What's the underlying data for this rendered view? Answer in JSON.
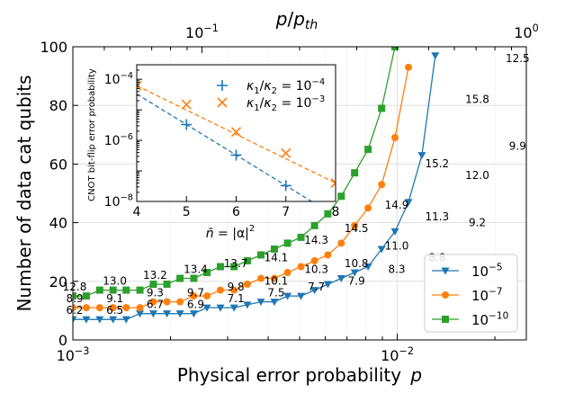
{
  "chart_data": [
    {
      "type": "line",
      "xlabel": "Physical error probability",
      "xlabel_var": "p",
      "ylabel": "Number of data cat qubits",
      "top_xlabel_num": "p",
      "top_xlabel_den": "p",
      "top_xlabel_den_sub": "th",
      "xscale": "log",
      "xlim": [
        0.001,
        0.025
      ],
      "ylim": [
        0,
        100
      ],
      "x_ticks": [
        {
          "value": 0.001,
          "base": "10",
          "exp": "−3"
        },
        {
          "value": 0.01,
          "base": "10",
          "exp": "−2"
        }
      ],
      "top_x_ticks": [
        {
          "value": 0.0025,
          "base": "10",
          "exp": "−1"
        },
        {
          "value": 0.025,
          "base": "10",
          "exp": "0"
        }
      ],
      "y_ticks": [
        0,
        20,
        40,
        60,
        80,
        100
      ],
      "grid": true,
      "legend_position": "bottom-right",
      "series": [
        {
          "name_base": "10",
          "name_exp": "−5",
          "color": "#1f77b4",
          "marker": "triangle-down",
          "points": [
            [
              0.001,
              7
            ],
            [
              0.0011,
              7
            ],
            [
              0.00121,
              7
            ],
            [
              0.00133,
              7
            ],
            [
              0.00146,
              7
            ],
            [
              0.00161,
              9
            ],
            [
              0.00177,
              9
            ],
            [
              0.00195,
              9
            ],
            [
              0.00214,
              9
            ],
            [
              0.00236,
              9
            ],
            [
              0.00259,
              11
            ],
            [
              0.00285,
              11
            ],
            [
              0.00314,
              11
            ],
            [
              0.00345,
              12
            ],
            [
              0.0038,
              13
            ],
            [
              0.00418,
              13
            ],
            [
              0.00459,
              15
            ],
            [
              0.00505,
              15
            ],
            [
              0.00556,
              17
            ],
            [
              0.00611,
              19
            ],
            [
              0.00672,
              21
            ],
            [
              0.00739,
              23
            ],
            [
              0.00813,
              25
            ],
            [
              0.00895,
              31
            ],
            [
              0.00984,
              37
            ],
            [
              0.01083,
              47
            ],
            [
              0.01191,
              63
            ],
            [
              0.0131,
              97
            ]
          ]
        },
        {
          "name_base": "10",
          "name_exp": "−7",
          "color": "#ff7f0e",
          "marker": "circle",
          "points": [
            [
              0.001,
              11
            ],
            [
              0.0011,
              11
            ],
            [
              0.00121,
              11
            ],
            [
              0.00133,
              11
            ],
            [
              0.00146,
              11
            ],
            [
              0.00161,
              11
            ],
            [
              0.00177,
              13
            ],
            [
              0.00195,
              13
            ],
            [
              0.00214,
              13
            ],
            [
              0.00236,
              15
            ],
            [
              0.00259,
              15
            ],
            [
              0.00285,
              17
            ],
            [
              0.00314,
              17
            ],
            [
              0.00345,
              19
            ],
            [
              0.0038,
              21
            ],
            [
              0.00418,
              21
            ],
            [
              0.00459,
              23
            ],
            [
              0.00505,
              25
            ],
            [
              0.00556,
              27
            ],
            [
              0.00611,
              29
            ],
            [
              0.00672,
              33
            ],
            [
              0.00739,
              39
            ],
            [
              0.00813,
              45
            ],
            [
              0.00895,
              53
            ],
            [
              0.00984,
              69
            ],
            [
              0.01083,
              93
            ]
          ]
        },
        {
          "name_base": "10",
          "name_exp": "−10",
          "color": "#2ca02c",
          "marker": "square",
          "points": [
            [
              0.001,
              15
            ],
            [
              0.0011,
              15
            ],
            [
              0.00121,
              17
            ],
            [
              0.00133,
              17
            ],
            [
              0.00146,
              17
            ],
            [
              0.00161,
              17
            ],
            [
              0.00177,
              19
            ],
            [
              0.00195,
              19
            ],
            [
              0.00214,
              21
            ],
            [
              0.00236,
              21
            ],
            [
              0.00259,
              23
            ],
            [
              0.00285,
              25
            ],
            [
              0.00314,
              25
            ],
            [
              0.00345,
              27
            ],
            [
              0.0038,
              29
            ],
            [
              0.00418,
              31
            ],
            [
              0.00459,
              33
            ],
            [
              0.00505,
              35
            ],
            [
              0.00556,
              39
            ],
            [
              0.00611,
              43
            ],
            [
              0.00672,
              49
            ],
            [
              0.00739,
              57
            ],
            [
              0.00813,
              65
            ],
            [
              0.00895,
              79
            ],
            [
              0.00984,
              100
            ]
          ]
        }
      ],
      "annotations": [
        {
          "series": 0,
          "text": "6.2",
          "x": 0.001,
          "y": 7
        },
        {
          "series": 0,
          "text": "6.5",
          "x": 0.00133,
          "y": 7
        },
        {
          "series": 0,
          "text": "6.7",
          "x": 0.00177,
          "y": 9
        },
        {
          "series": 0,
          "text": "6.9",
          "x": 0.00236,
          "y": 9
        },
        {
          "series": 0,
          "text": "7.1",
          "x": 0.00314,
          "y": 11
        },
        {
          "series": 0,
          "text": "7.5",
          "x": 0.00418,
          "y": 13
        },
        {
          "series": 0,
          "text": "7.7",
          "x": 0.00556,
          "y": 15
        },
        {
          "series": 0,
          "text": "7.9",
          "x": 0.00739,
          "y": 17
        },
        {
          "series": 0,
          "text": "8.3",
          "x": 0.00984,
          "y": 21
        },
        {
          "series": 0,
          "text": "8.8",
          "x": 0.0131,
          "y": 25
        },
        {
          "series": 0,
          "text": "9.2",
          "x": 0.01743,
          "y": 37
        },
        {
          "series": 0,
          "text": "9.9",
          "x": 0.0232,
          "y": 63
        },
        {
          "series": 1,
          "text": "8.9",
          "x": 0.001,
          "y": 11
        },
        {
          "series": 1,
          "text": "9.1",
          "x": 0.00133,
          "y": 11
        },
        {
          "series": 1,
          "text": "9.3",
          "x": 0.00177,
          "y": 13
        },
        {
          "series": 1,
          "text": "9.7",
          "x": 0.00236,
          "y": 13
        },
        {
          "series": 1,
          "text": "9.8",
          "x": 0.00314,
          "y": 15
        },
        {
          "series": 1,
          "text": "10.1",
          "x": 0.00418,
          "y": 17
        },
        {
          "series": 1,
          "text": "10.3",
          "x": 0.00556,
          "y": 21
        },
        {
          "series": 1,
          "text": "10.8",
          "x": 0.00739,
          "y": 23
        },
        {
          "series": 1,
          "text": "11.0",
          "x": 0.00984,
          "y": 29
        },
        {
          "series": 1,
          "text": "11.3",
          "x": 0.0131,
          "y": 39
        },
        {
          "series": 1,
          "text": "12.0",
          "x": 0.01743,
          "y": 53
        },
        {
          "series": 1,
          "text": "12.5",
          "x": 0.0232,
          "y": 93
        },
        {
          "series": 2,
          "text": "12.8",
          "x": 0.001,
          "y": 15
        },
        {
          "series": 2,
          "text": "13.0",
          "x": 0.00133,
          "y": 17
        },
        {
          "series": 2,
          "text": "13.2",
          "x": 0.00177,
          "y": 19
        },
        {
          "series": 2,
          "text": "13.4",
          "x": 0.00236,
          "y": 21
        },
        {
          "series": 2,
          "text": "13.7",
          "x": 0.00314,
          "y": 23
        },
        {
          "series": 2,
          "text": "14.1",
          "x": 0.00418,
          "y": 25
        },
        {
          "series": 2,
          "text": "14.3",
          "x": 0.00556,
          "y": 31
        },
        {
          "series": 2,
          "text": "14.5",
          "x": 0.00739,
          "y": 35
        },
        {
          "series": 2,
          "text": "14.9",
          "x": 0.00984,
          "y": 43
        },
        {
          "series": 2,
          "text": "15.2",
          "x": 0.0131,
          "y": 57
        },
        {
          "series": 2,
          "text": "15.8",
          "x": 0.01743,
          "y": 79
        }
      ]
    },
    {
      "type": "line",
      "ylabel": "CNOT bit-flip error probability",
      "xlabel": "|α|",
      "xlabel_lhs": "n̄",
      "xlabel_sup": "2",
      "yscale": "log",
      "xlim": [
        4,
        8
      ],
      "ylim": [
        1e-08,
        0.0003
      ],
      "x_ticks": [
        4,
        5,
        6,
        7,
        8
      ],
      "y_ticks": [
        {
          "value": 1e-08,
          "base": "10",
          "exp": "−8"
        },
        {
          "value": 1e-06,
          "base": "10",
          "exp": "−6"
        },
        {
          "value": 0.0001,
          "base": "10",
          "exp": "−4"
        }
      ],
      "legend_position": "top-right",
      "series": [
        {
          "name_lhs": "κ",
          "name_lhs_sub": "1",
          "name_mid": "κ",
          "name_mid_sub": "2",
          "name_base": "10",
          "name_exp": "−4",
          "color": "#1f77b4",
          "marker": "plus",
          "points": [
            [
              5,
              3.3e-06
            ],
            [
              6,
              3.3e-07
            ],
            [
              7,
              3.3e-08
            ]
          ],
          "fit": [
            [
              4,
              3.3e-05
            ],
            [
              8,
              3.3e-09
            ]
          ]
        },
        {
          "name_lhs": "κ",
          "name_lhs_sub": "1",
          "name_mid": "κ",
          "name_mid_sub": "2",
          "name_base": "10",
          "name_exp": "−3",
          "color": "#ff7f0e",
          "marker": "x",
          "points": [
            [
              4,
              6.2e-05
            ],
            [
              5,
              1.5e-05
            ],
            [
              6,
              1.9e-06
            ],
            [
              7,
              3.8e-07
            ],
            [
              8,
              4e-08
            ]
          ],
          "fit": [
            [
              4,
              6.2e-05
            ],
            [
              8,
              4e-08
            ]
          ]
        }
      ]
    }
  ]
}
